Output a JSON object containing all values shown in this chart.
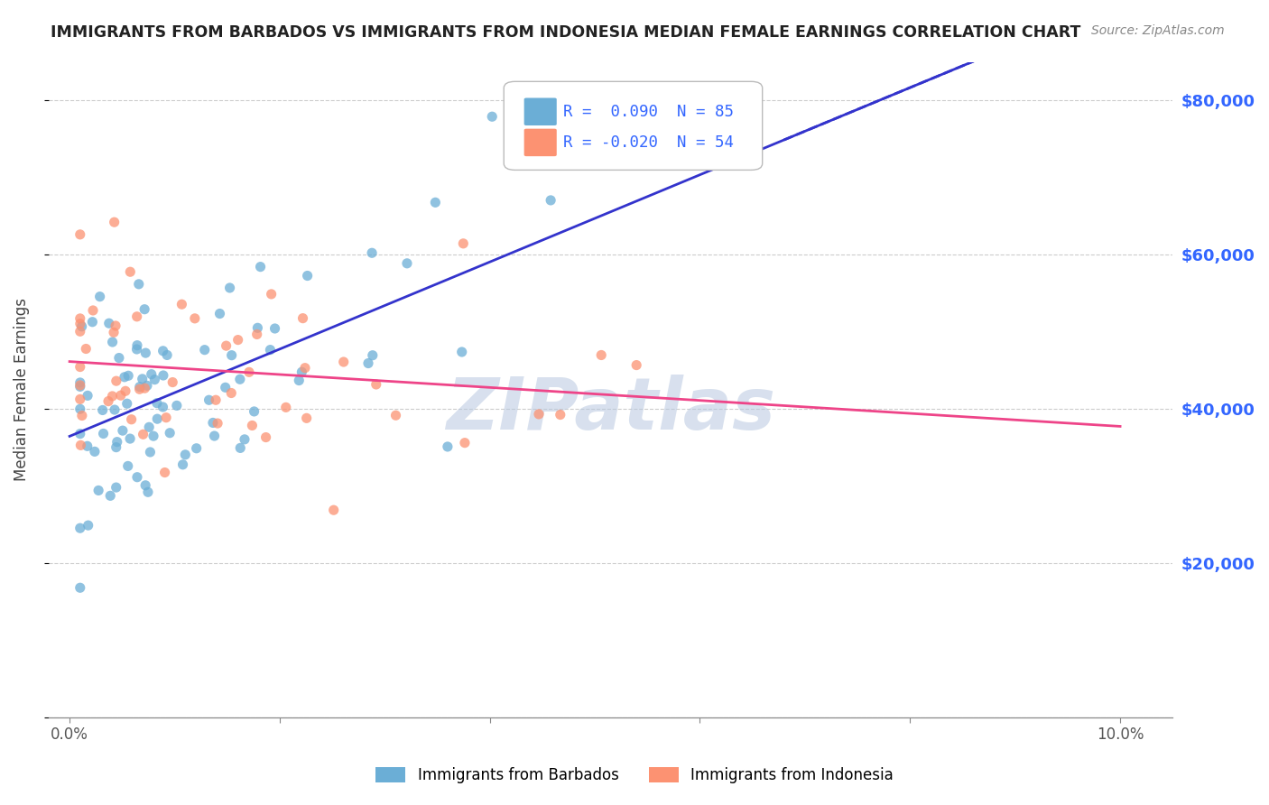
{
  "title": "IMMIGRANTS FROM BARBADOS VS IMMIGRANTS FROM INDONESIA MEDIAN FEMALE EARNINGS CORRELATION CHART",
  "source": "Source: ZipAtlas.com",
  "ylabel": "Median Female Earnings",
  "ylim": [
    0,
    85000
  ],
  "xlim": [
    -0.002,
    0.105
  ],
  "barbados_R": 0.09,
  "barbados_N": 85,
  "indonesia_R": -0.02,
  "indonesia_N": 54,
  "barbados_color": "#6baed6",
  "indonesia_color": "#fc9272",
  "trend_blue": "#3333cc",
  "trend_pink": "#ee4488",
  "watermark": "ZIPatlas",
  "watermark_color": "#b8c8e0",
  "background_color": "#ffffff",
  "grid_color": "#cccccc",
  "title_color": "#222222",
  "axis_label_color": "#444444",
  "right_axis_color": "#3366ff",
  "legend_label_color": "#3366ff"
}
